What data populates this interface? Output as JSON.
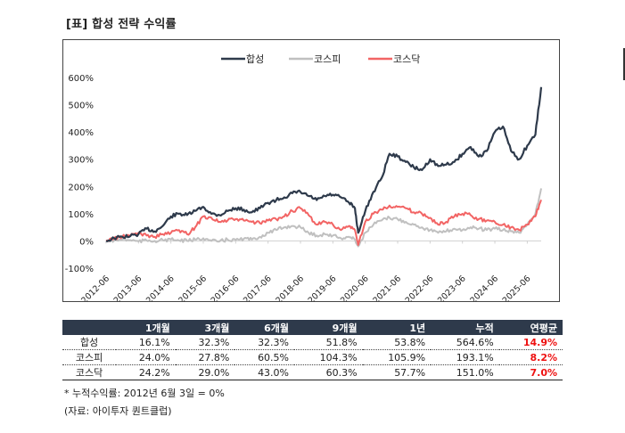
{
  "title": "[표] 합성 전략 수익률",
  "chart_data": {
    "type": "line",
    "title": "",
    "xlabel": "",
    "ylabel": "",
    "ylim": [
      -100,
      600
    ],
    "yticks": [
      -100,
      0,
      100,
      200,
      300,
      400,
      500,
      600
    ],
    "ytick_labels": [
      "-100%",
      "0%",
      "100%",
      "200%",
      "300%",
      "400%",
      "500%",
      "600%"
    ],
    "xtick_labels": [
      "2012-06",
      "2013-06",
      "2014-06",
      "2015-06",
      "2016-06",
      "2017-06",
      "2018-06",
      "2019-06",
      "2020-06",
      "2021-06",
      "2022-06",
      "2023-06",
      "2024-06",
      "2025-06"
    ],
    "x_start": 2012.42,
    "x_end": 2025.85,
    "grid": false,
    "legend_position": "top-center",
    "x": [
      2012.42,
      2012.67,
      2012.92,
      2013.17,
      2013.42,
      2013.67,
      2013.92,
      2014.17,
      2014.42,
      2014.67,
      2014.92,
      2015.17,
      2015.42,
      2015.67,
      2015.92,
      2016.17,
      2016.42,
      2016.67,
      2016.92,
      2017.17,
      2017.42,
      2017.67,
      2017.92,
      2018.17,
      2018.42,
      2018.67,
      2018.92,
      2019.17,
      2019.42,
      2019.67,
      2019.92,
      2020.1,
      2020.2,
      2020.42,
      2020.67,
      2020.92,
      2021.17,
      2021.42,
      2021.67,
      2021.92,
      2022.17,
      2022.42,
      2022.67,
      2022.92,
      2023.17,
      2023.42,
      2023.67,
      2023.92,
      2024.17,
      2024.42,
      2024.67,
      2024.92,
      2025.17,
      2025.42,
      2025.67,
      2025.85
    ],
    "series": [
      {
        "name": "합성",
        "color": "#2e3a4b",
        "values": [
          0,
          10,
          15,
          18,
          25,
          45,
          35,
          55,
          90,
          100,
          95,
          110,
          125,
          100,
          95,
          110,
          120,
          115,
          105,
          120,
          140,
          150,
          160,
          175,
          180,
          165,
          150,
          165,
          170,
          160,
          140,
          120,
          30,
          110,
          180,
          230,
          320,
          310,
          290,
          270,
          260,
          300,
          275,
          280,
          290,
          320,
          345,
          310,
          330,
          400,
          420,
          330,
          300,
          350,
          390,
          565
        ]
      },
      {
        "name": "코스피",
        "color": "#c0c0c0",
        "values": [
          0,
          2,
          5,
          3,
          -2,
          2,
          0,
          3,
          5,
          2,
          0,
          5,
          10,
          0,
          -2,
          5,
          3,
          8,
          5,
          15,
          30,
          40,
          50,
          55,
          50,
          30,
          20,
          25,
          20,
          10,
          15,
          5,
          -20,
          30,
          60,
          75,
          85,
          80,
          70,
          60,
          50,
          40,
          30,
          35,
          45,
          40,
          50,
          45,
          40,
          45,
          40,
          35,
          30,
          60,
          100,
          193
        ]
      },
      {
        "name": "코스닥",
        "color": "#f26464",
        "values": [
          0,
          10,
          15,
          20,
          30,
          20,
          15,
          25,
          30,
          40,
          25,
          50,
          90,
          85,
          70,
          75,
          80,
          75,
          70,
          65,
          75,
          80,
          90,
          110,
          120,
          95,
          60,
          70,
          60,
          40,
          55,
          40,
          -15,
          70,
          100,
          115,
          130,
          125,
          120,
          105,
          100,
          85,
          60,
          70,
          90,
          100,
          95,
          80,
          75,
          70,
          60,
          50,
          40,
          60,
          90,
          151
        ]
      }
    ]
  },
  "table": {
    "headers": [
      "",
      "1개월",
      "3개월",
      "6개월",
      "9개월",
      "1년",
      "누적",
      "연평균"
    ],
    "rows": [
      {
        "label": "합성",
        "values": [
          "16.1%",
          "32.3%",
          "32.3%",
          "51.8%",
          "53.8%",
          "564.6%"
        ],
        "annual": "14.9%"
      },
      {
        "label": "코스피",
        "values": [
          "24.0%",
          "27.8%",
          "60.5%",
          "104.3%",
          "105.9%",
          "193.1%"
        ],
        "annual": "8.2%"
      },
      {
        "label": "코스닥",
        "values": [
          "24.2%",
          "29.0%",
          "43.0%",
          "60.3%",
          "57.7%",
          "151.0%"
        ],
        "annual": "7.0%"
      }
    ]
  },
  "notes": {
    "footnote": "* 누적수익률: 2012년 6월 3일 = 0%",
    "source": "(자료: 아이투자 퀀트클럽)"
  },
  "colors": {
    "header_bg": "#2e3a4b",
    "annual_highlight": "#ee1111"
  }
}
